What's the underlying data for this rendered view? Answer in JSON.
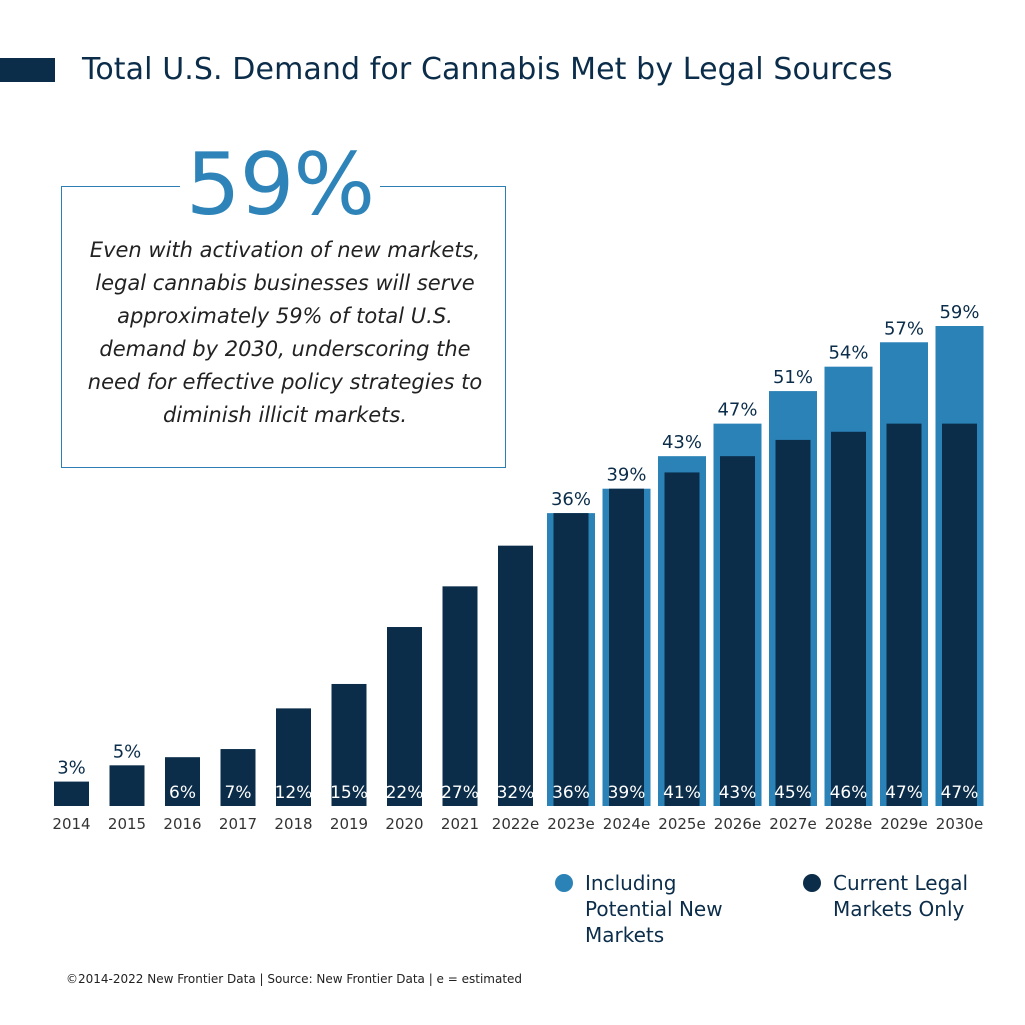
{
  "title": "Total U.S. Demand for Cannabis Met by Legal Sources",
  "callout": {
    "stat": "59%",
    "text": "Even with activation of new markets, legal cannabis businesses will serve approximately 59% of total U.S. demand by 2030, underscoring the need for effective policy strategies to diminish illicit markets."
  },
  "legend": {
    "potential_label": "Including Potential New Markets",
    "current_label": "Current Legal Markets Only"
  },
  "footer": "©2014-2022 New Frontier Data | Source: New Frontier Data   | e = estimated",
  "colors": {
    "current": "#0b2d4a",
    "potential": "#2b82b7",
    "text_dark": "#0b2d4a",
    "label_light": "#ffffff"
  },
  "chart_data": {
    "type": "bar",
    "categories": [
      "2014",
      "2015",
      "2016",
      "2017",
      "2018",
      "2019",
      "2020",
      "2021",
      "2022e",
      "2023e",
      "2024e",
      "2025e",
      "2026e",
      "2027e",
      "2028e",
      "2029e",
      "2030e"
    ],
    "series": [
      {
        "name": "Including Potential New Markets",
        "values": [
          null,
          null,
          null,
          null,
          null,
          null,
          null,
          null,
          null,
          36,
          39,
          43,
          47,
          51,
          54,
          57,
          59
        ],
        "labels": [
          "",
          "",
          "",
          "",
          "",
          "",
          "",
          "",
          "",
          "36%",
          "39%",
          "43%",
          "47%",
          "51%",
          "54%",
          "57%",
          "59%"
        ]
      },
      {
        "name": "Current Legal Markets Only",
        "values": [
          3,
          5,
          6,
          7,
          12,
          15,
          22,
          27,
          32,
          36,
          39,
          41,
          43,
          45,
          46,
          47,
          47
        ],
        "labels": [
          "3%",
          "5%",
          "6%",
          "7%",
          "12%",
          "15%",
          "22%",
          "27%",
          "32%",
          "36%",
          "39%",
          "41%",
          "43%",
          "45%",
          "46%",
          "47%",
          "47%"
        ]
      }
    ],
    "ylim": [
      0,
      59
    ],
    "grid": false,
    "legend_position": "bottom-right"
  }
}
